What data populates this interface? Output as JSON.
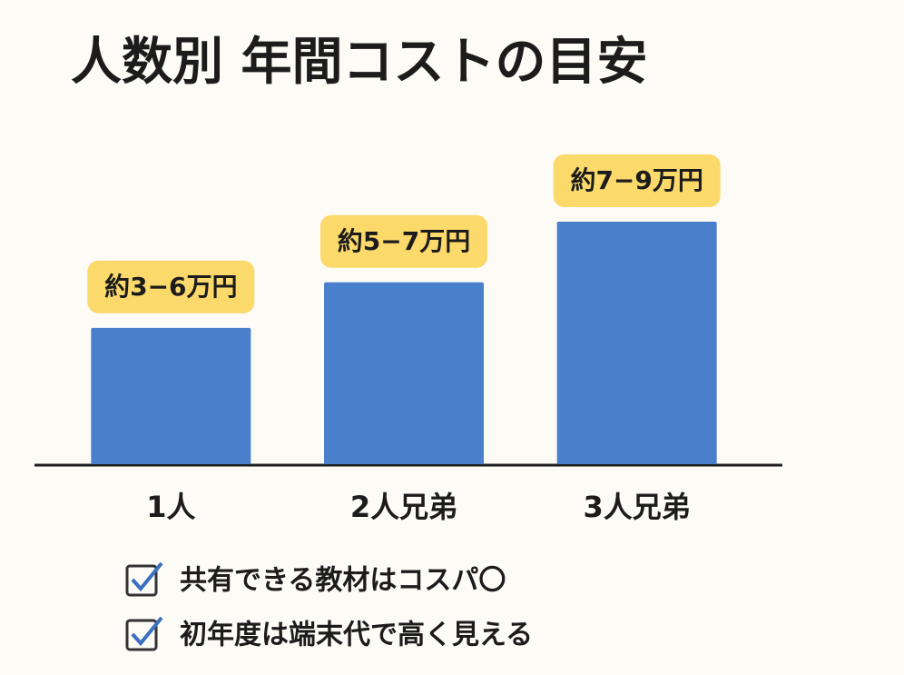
{
  "chart_data": {
    "type": "bar",
    "title": "人数別 年間コストの目安",
    "categories": [
      "1人",
      "2人兄弟",
      "3人兄弟"
    ],
    "values": [
      4.5,
      6,
      8
    ],
    "value_labels": [
      "約3−6万円",
      "約5−7万円",
      "約7−9万円"
    ],
    "color": "#4a7fcc"
  },
  "checklist": [
    "共有できる教材はコスパ〇",
    "初年度は端末代で高く見える"
  ]
}
